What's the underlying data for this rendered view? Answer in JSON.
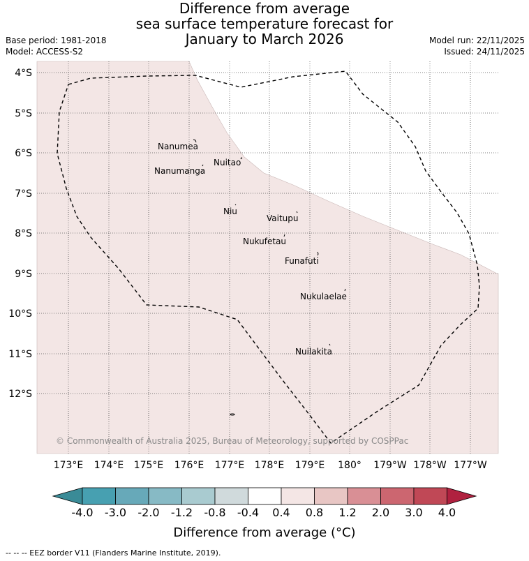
{
  "title": {
    "line1": "Difference from average",
    "line2": "sea surface temperature forecast for",
    "line3": "January to March 2026"
  },
  "meta_left": {
    "base_period": "Base period: 1981-2018",
    "model": "Model: ACCESS-S2"
  },
  "meta_right": {
    "model_run": "Model run: 22/11/2025",
    "issued": "Issued: 24/11/2025"
  },
  "map": {
    "lon_labels": [
      "173°E",
      "174°E",
      "175°E",
      "176°E",
      "177°E",
      "178°E",
      "179°E",
      "180°",
      "179°W",
      "178°W",
      "177°W"
    ],
    "lat_labels": [
      "4°S",
      "5°S",
      "6°S",
      "7°S",
      "8°S",
      "9°S",
      "10°S",
      "11°S",
      "12°S"
    ],
    "islands": [
      {
        "name": "Nanumea"
      },
      {
        "name": "Nuitao"
      },
      {
        "name": "Nanumanga"
      },
      {
        "name": "Niu"
      },
      {
        "name": "Vaitupu"
      },
      {
        "name": "Nukufetau"
      },
      {
        "name": "Funafuti"
      },
      {
        "name": "Nukulaelae"
      },
      {
        "name": "Nuilakita"
      }
    ],
    "copyright": "© Commonwealth of Australia 2025, Bureau of Meteorology, supported by COSPPac",
    "anomaly_color": "#f3e6e5"
  },
  "colorbar": {
    "ticks": [
      "-4.0",
      "-3.0",
      "-2.0",
      "-1.2",
      "-0.8",
      "-0.4",
      "0.4",
      "0.8",
      "1.2",
      "2.0",
      "3.0",
      "4.0"
    ],
    "low_color": "#3a8b97",
    "colors": [
      "#47a0b1",
      "#67a9b9",
      "#87bac5",
      "#a9cbd0",
      "#d0dadc",
      "#ffffff",
      "#f4e6e5",
      "#e8c6c4",
      "#d98f95",
      "#cc6670",
      "#c04856"
    ],
    "high_color": "#b0213f",
    "label": "Difference from average (°C)"
  },
  "footer": "--  --  -- EEZ border V11 (Flanders Marine Institute, 2019)."
}
